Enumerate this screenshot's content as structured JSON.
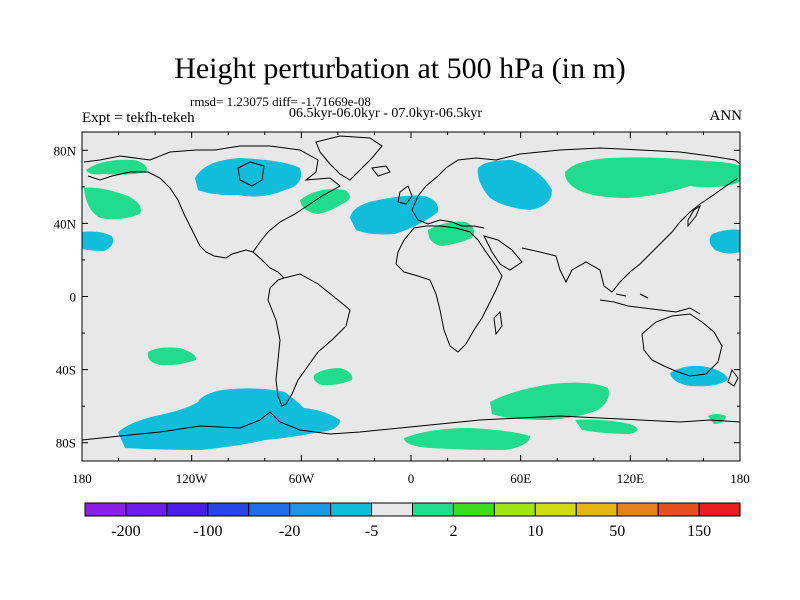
{
  "title": "Height perturbation at 500 hPa (in m)",
  "stats": "rmsd= 1.23075 diff= -1.71669e-08",
  "experiment": "Expt = tekfh-tekeh",
  "period": "06.5kyr-06.0kyr - 07.0kyr-06.5kyr",
  "season": "ANN",
  "map": {
    "projection": "cylindrical-equidistant",
    "lon_range": [
      -180,
      180
    ],
    "lat_range": [
      -90,
      90
    ],
    "background_color": "#e8e8e8",
    "coastline_color": "#000000",
    "lon_ticks": [
      {
        "value": -180,
        "label": "180"
      },
      {
        "value": -120,
        "label": "120W"
      },
      {
        "value": -60,
        "label": "60W"
      },
      {
        "value": 0,
        "label": "0"
      },
      {
        "value": 60,
        "label": "60E"
      },
      {
        "value": 120,
        "label": "120E"
      },
      {
        "value": 180,
        "label": "180"
      }
    ],
    "lat_ticks": [
      {
        "value": 80,
        "label": "80N"
      },
      {
        "value": 40,
        "label": "40N"
      },
      {
        "value": 0,
        "label": "0"
      },
      {
        "value": -40,
        "label": "40S"
      },
      {
        "value": -80,
        "label": "80S"
      }
    ]
  },
  "anomaly_regions": [
    {
      "category": "negative",
      "color": "#10bedc",
      "name": "Alaska / Canada"
    },
    {
      "category": "negative",
      "color": "#10bedc",
      "name": "North Atlantic / Western Europe"
    },
    {
      "category": "negative",
      "color": "#10bedc",
      "name": "Western Siberia"
    },
    {
      "category": "negative",
      "color": "#10bedc",
      "name": "East Pacific near 30N"
    },
    {
      "category": "negative",
      "color": "#10bedc",
      "name": "West Pacific near 35N"
    },
    {
      "category": "negative",
      "color": "#10bedc",
      "name": "Southeast Australia"
    },
    {
      "category": "negative",
      "color": "#10bedc",
      "name": "South Pacific / Amundsen Sea"
    },
    {
      "category": "positive",
      "color": "#20dc8c",
      "name": "Bering / North Pacific"
    },
    {
      "category": "positive",
      "color": "#20dc8c",
      "name": "Greenland / Labrador"
    },
    {
      "category": "positive",
      "color": "#20dc8c",
      "name": "Mediterranean"
    },
    {
      "category": "positive",
      "color": "#20dc8c",
      "name": "Siberia / Central Asia"
    },
    {
      "category": "positive",
      "color": "#20dc8c",
      "name": "Southern Indian Ocean"
    },
    {
      "category": "positive",
      "color": "#20dc8c",
      "name": "Southeast Pacific"
    },
    {
      "category": "positive",
      "color": "#20dc8c",
      "name": "South Atlantic"
    },
    {
      "category": "positive",
      "color": "#20dc8c",
      "name": "Antarctic coast 0-40E"
    }
  ],
  "colorbar": {
    "colors": [
      "#8c1ee6",
      "#6e1ee6",
      "#4b1ee6",
      "#2846e6",
      "#1e6ee6",
      "#1e96e6",
      "#10bedc",
      "#e8e8e8",
      "#20dc8c",
      "#3cdc1e",
      "#a0e614",
      "#d2dc14",
      "#e6b414",
      "#e6821e",
      "#e6501e",
      "#e61e1e"
    ],
    "labels": [
      "-200",
      "-100",
      "-20",
      "-5",
      "2",
      "10",
      "50",
      "150"
    ]
  }
}
